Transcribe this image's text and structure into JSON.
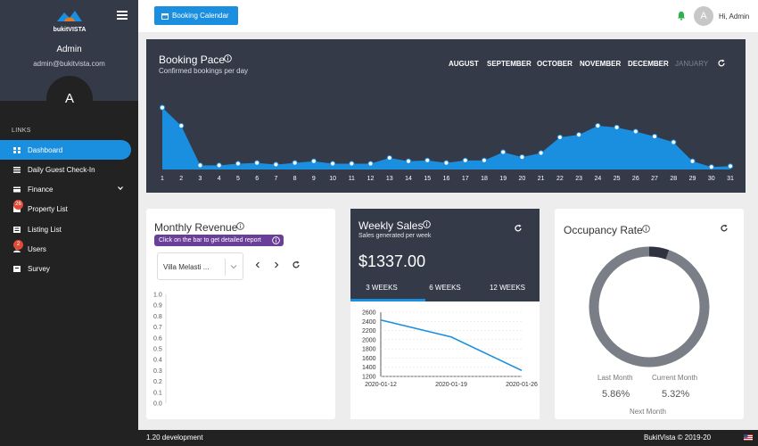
{
  "sidebar": {
    "brand": "bukitVISTA",
    "admin_name": "Admin",
    "admin_email": "admin@bukitvista.com",
    "avatar_letter": "A",
    "links_title": "LINKS",
    "items": [
      {
        "label": "Dashboard",
        "icon": "dashboard-icon",
        "active": true
      },
      {
        "label": "Daily Guest Check-In",
        "icon": "list-icon"
      },
      {
        "label": "Finance",
        "icon": "finance-icon",
        "chevron": true
      },
      {
        "label": "Property List",
        "icon": "property-icon",
        "badge": "26"
      },
      {
        "label": "Listing List",
        "icon": "listing-icon"
      },
      {
        "label": "Users",
        "icon": "users-icon",
        "badge": "2"
      },
      {
        "label": "Survey",
        "icon": "survey-icon"
      }
    ]
  },
  "topbar": {
    "booking_calendar_label": "Booking Calendar",
    "avatar_letter": "A",
    "greeting": "Hi, Admin"
  },
  "booking_pace": {
    "title": "Booking Pace",
    "subtitle": "Confirmed bookings per day",
    "months": [
      "AUGUST",
      "SEPTEMBER",
      "OCTOBER",
      "NOVEMBER",
      "DECEMBER",
      "JANUARY"
    ],
    "inactive_month": "JANUARY"
  },
  "monthly_revenue": {
    "title": "Monthly Revenue",
    "hint": "Click on the bar to get detailed report",
    "listing_value": "Villa Melasti ..."
  },
  "weekly_sales": {
    "title": "Weekly Sales",
    "subtitle": "Sales generated per week",
    "total": "$1337.00",
    "tabs": [
      "3 WEEKS",
      "6 WEEKS",
      "12 WEEKS"
    ]
  },
  "occupancy": {
    "title": "Occupancy Rate",
    "last_month_label": "Last Month",
    "last_month_value": "5.86%",
    "current_month_label": "Current Month",
    "current_month_value": "5.32%",
    "next_month_label": "Next Month",
    "occupied_fraction": 0.0532
  },
  "footer": {
    "version": "1.20 development",
    "copyright": "BukitVista © 2019-20"
  },
  "colors": {
    "accent": "#1a8fe0",
    "panel_dark": "#343a48",
    "sidebar": "#222222",
    "donut_bg": "#7a7f87",
    "donut_fill": "#2f3340"
  },
  "chart_data": [
    {
      "type": "area",
      "x": [
        "1",
        "2",
        "3",
        "4",
        "5",
        "6",
        "7",
        "8",
        "9",
        "10",
        "11",
        "12",
        "13",
        "14",
        "15",
        "16",
        "17",
        "18",
        "19",
        "20",
        "21",
        "22",
        "23",
        "24",
        "25",
        "26",
        "27",
        "28",
        "29",
        "30",
        "31"
      ],
      "series": [
        {
          "values": [
            70,
            48,
            0,
            0,
            2,
            3,
            1,
            3,
            5,
            2,
            2,
            2,
            9,
            5,
            6,
            3,
            6,
            6,
            16,
            10,
            15,
            34,
            37,
            48,
            46,
            41,
            35,
            28,
            5,
            -2,
            -1
          ]
        }
      ],
      "ylim": [
        -5,
        75
      ],
      "grid": false
    },
    {
      "type": "bar",
      "yticks": [
        "0.0",
        "0.1",
        "0.2",
        "0.3",
        "0.4",
        "0.5",
        "0.6",
        "0.7",
        "0.8",
        "0.9",
        "1.0"
      ],
      "ylim": [
        0,
        1.0
      ],
      "categories": [],
      "values": []
    },
    {
      "type": "line",
      "x": [
        "2020-01-12",
        "2020-01-19",
        "2020-01-26"
      ],
      "yticks": [
        "1200",
        "1400",
        "1600",
        "1800",
        "2000",
        "2200",
        "2400",
        "2600"
      ],
      "series": [
        {
          "values": [
            2430,
            2060,
            1330
          ]
        }
      ],
      "ylim": [
        1200,
        2600
      ],
      "grid": true
    }
  ]
}
